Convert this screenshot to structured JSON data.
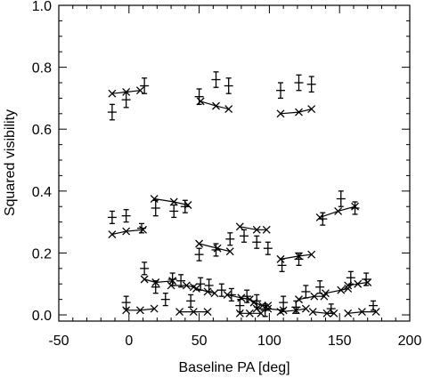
{
  "chart_data": {
    "type": "scatter",
    "title": "",
    "xlabel": "Baseline PA [deg]",
    "ylabel": "Squared visibility",
    "xlim": [
      -50,
      200
    ],
    "ylim": [
      -0.02,
      1.0
    ],
    "xticks": [
      -50,
      0,
      50,
      100,
      150,
      200
    ],
    "xtick_labels": [
      "-50",
      "0",
      "50",
      "100",
      "150",
      "200"
    ],
    "yticks": [
      0.0,
      0.2,
      0.4,
      0.6,
      0.8,
      1.0
    ],
    "ytick_labels": [
      "0.0",
      "0.2",
      "0.4",
      "0.6",
      "0.8",
      "1.0"
    ],
    "grid": false,
    "series": [
      {
        "marker": "plus-errorbar",
        "points": [
          {
            "x": -12,
            "y": 0.655,
            "err": 0.025
          },
          {
            "x": -2,
            "y": 0.695,
            "err": 0.025
          },
          {
            "x": 11,
            "y": 0.74,
            "err": 0.025
          },
          {
            "x": 50,
            "y": 0.705,
            "err": 0.025
          },
          {
            "x": 62,
            "y": 0.76,
            "err": 0.025
          },
          {
            "x": 71,
            "y": 0.74,
            "err": 0.025
          },
          {
            "x": 108,
            "y": 0.725,
            "err": 0.025
          },
          {
            "x": 121,
            "y": 0.75,
            "err": 0.025
          },
          {
            "x": 130,
            "y": 0.745,
            "err": 0.025
          },
          {
            "x": -12,
            "y": 0.315,
            "err": 0.02
          },
          {
            "x": -2,
            "y": 0.32,
            "err": 0.02
          },
          {
            "x": 9,
            "y": 0.28,
            "err": 0.015
          },
          {
            "x": 19,
            "y": 0.345,
            "err": 0.025
          },
          {
            "x": 32,
            "y": 0.335,
            "err": 0.02
          },
          {
            "x": 40,
            "y": 0.35,
            "err": 0.02
          },
          {
            "x": 50,
            "y": 0.195,
            "err": 0.02
          },
          {
            "x": 62,
            "y": 0.21,
            "err": 0.02
          },
          {
            "x": 72,
            "y": 0.245,
            "err": 0.02
          },
          {
            "x": 82,
            "y": 0.255,
            "err": 0.02
          },
          {
            "x": 91,
            "y": 0.235,
            "err": 0.02
          },
          {
            "x": 99,
            "y": 0.215,
            "err": 0.02
          },
          {
            "x": 109,
            "y": 0.16,
            "err": 0.02
          },
          {
            "x": 121,
            "y": 0.18,
            "err": 0.02
          },
          {
            "x": 138,
            "y": 0.31,
            "err": 0.02
          },
          {
            "x": 151,
            "y": 0.375,
            "err": 0.025
          },
          {
            "x": 161,
            "y": 0.345,
            "err": 0.02
          },
          {
            "x": -2,
            "y": 0.04,
            "err": 0.02
          },
          {
            "x": 11,
            "y": 0.15,
            "err": 0.02
          },
          {
            "x": 19,
            "y": 0.09,
            "err": 0.02
          },
          {
            "x": 26,
            "y": 0.05,
            "err": 0.02
          },
          {
            "x": 31,
            "y": 0.115,
            "err": 0.02
          },
          {
            "x": 37,
            "y": 0.11,
            "err": 0.02
          },
          {
            "x": 44,
            "y": 0.045,
            "err": 0.02
          },
          {
            "x": 51,
            "y": 0.1,
            "err": 0.02
          },
          {
            "x": 57,
            "y": 0.095,
            "err": 0.02
          },
          {
            "x": 66,
            "y": 0.08,
            "err": 0.02
          },
          {
            "x": 73,
            "y": 0.065,
            "err": 0.02
          },
          {
            "x": 79,
            "y": 0.03,
            "err": 0.02
          },
          {
            "x": 84,
            "y": 0.06,
            "err": 0.02
          },
          {
            "x": 91,
            "y": 0.045,
            "err": 0.02
          },
          {
            "x": 97,
            "y": 0.015,
            "err": 0.02
          },
          {
            "x": 110,
            "y": 0.04,
            "err": 0.02
          },
          {
            "x": 119,
            "y": 0.025,
            "err": 0.02
          },
          {
            "x": 126,
            "y": 0.075,
            "err": 0.02
          },
          {
            "x": 136,
            "y": 0.09,
            "err": 0.02
          },
          {
            "x": 144,
            "y": 0.02,
            "err": 0.015
          },
          {
            "x": 158,
            "y": 0.12,
            "err": 0.02
          },
          {
            "x": 169,
            "y": 0.115,
            "err": 0.02
          },
          {
            "x": 174,
            "y": 0.03,
            "err": 0.015
          }
        ]
      },
      {
        "marker": "cross",
        "connected_groups": [
          [
            [
              -12,
              0.715
            ],
            [
              -2,
              0.72
            ],
            [
              8,
              0.725
            ]
          ],
          [
            [
              51,
              0.69
            ],
            [
              62,
              0.675
            ],
            [
              71,
              0.665
            ]
          ],
          [
            [
              108,
              0.65
            ],
            [
              121,
              0.655
            ],
            [
              130,
              0.665
            ]
          ],
          [
            [
              -12,
              0.26
            ],
            [
              -2,
              0.27
            ],
            [
              10,
              0.275
            ]
          ],
          [
            [
              18,
              0.375
            ],
            [
              32,
              0.365
            ],
            [
              42,
              0.355
            ]
          ],
          [
            [
              50,
              0.23
            ],
            [
              63,
              0.215
            ],
            [
              72,
              0.205
            ]
          ],
          [
            [
              79,
              0.285
            ],
            [
              91,
              0.275
            ],
            [
              98,
              0.275
            ]
          ],
          [
            [
              108,
              0.18
            ],
            [
              121,
              0.19
            ],
            [
              130,
              0.195
            ]
          ],
          [
            [
              136,
              0.315
            ],
            [
              149,
              0.335
            ],
            [
              161,
              0.35
            ]
          ],
          [
            [
              11,
              0.115
            ],
            [
              19,
              0.105
            ],
            [
              31,
              0.11
            ]
          ],
          [
            [
              30,
              0.095
            ],
            [
              41,
              0.095
            ],
            [
              46,
              0.09
            ]
          ],
          [
            [
              48,
              0.085
            ],
            [
              56,
              0.075
            ],
            [
              61,
              0.07
            ]
          ],
          [
            [
              70,
              0.065
            ],
            [
              80,
              0.055
            ],
            [
              86,
              0.05
            ]
          ],
          [
            [
              89,
              0.04
            ],
            [
              95,
              0.03
            ],
            [
              99,
              0.03
            ]
          ],
          [
            [
              121,
              0.05
            ],
            [
              132,
              0.06
            ],
            [
              139,
              0.06
            ]
          ],
          [
            [
              140,
              0.07
            ],
            [
              151,
              0.08
            ],
            [
              156,
              0.085
            ]
          ],
          [
            [
              156,
              0.095
            ],
            [
              163,
              0.1
            ],
            [
              170,
              0.105
            ]
          ],
          [
            [
              -2,
              0.015
            ],
            [
              8,
              0.015
            ],
            [
              18,
              0.02
            ]
          ],
          [
            [
              36,
              0.01
            ],
            [
              46,
              0.01
            ],
            [
              56,
              0.01
            ]
          ],
          [
            [
              79,
              0.005
            ],
            [
              86,
              0.005
            ],
            [
              94,
              0.005
            ]
          ],
          [
            [
              108,
              0.01
            ],
            [
              119,
              0.015
            ],
            [
              126,
              0.02
            ]
          ],
          [
            [
              131,
              0.01
            ],
            [
              141,
              0.005
            ],
            [
              146,
              0.005
            ]
          ],
          [
            [
              156,
              0.005
            ],
            [
              166,
              0.01
            ],
            [
              176,
              0.01
            ]
          ],
          [
            [
              91,
              0.02
            ],
            [
              99,
              0.02
            ],
            [
              110,
              0.015
            ]
          ]
        ]
      }
    ]
  }
}
